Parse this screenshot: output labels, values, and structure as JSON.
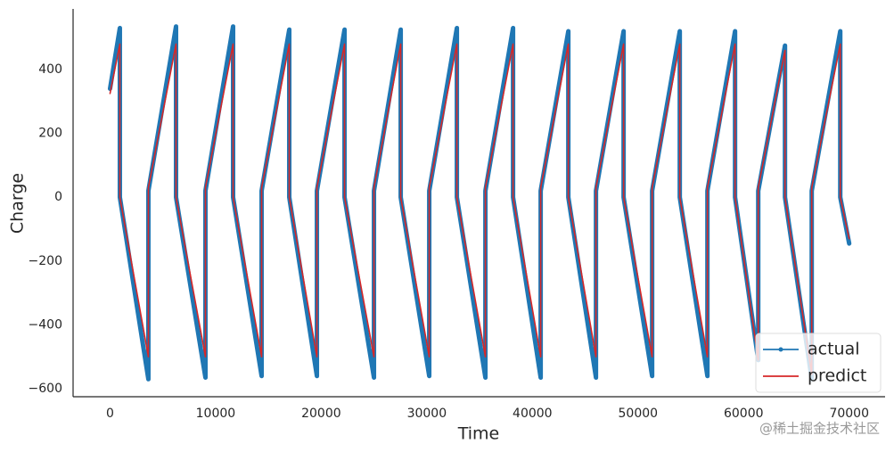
{
  "chart_data": {
    "type": "line",
    "xlabel": "Time",
    "ylabel": "Charge",
    "x": [
      0,
      929,
      929,
      3631,
      3631,
      6249,
      6249,
      9035,
      9035,
      11652,
      11652,
      14354,
      14354,
      16972,
      16972,
      19590,
      19590,
      22207,
      22207,
      24994,
      24994,
      27527,
      27527,
      30229,
      30229,
      32846,
      32846,
      35548,
      35548,
      38166,
      38166,
      40783,
      40783,
      43401,
      43401,
      46019,
      46019,
      48636,
      48636,
      51338,
      51338,
      53956,
      53956,
      56573,
      56573,
      59191,
      59191,
      61387,
      61387,
      63920,
      63920,
      66453,
      66453,
      69155,
      69155,
      70000
    ],
    "series": [
      {
        "name": "actual",
        "color": "#1f77b4",
        "marker": true,
        "values": [
          340,
          530,
          0,
          -570,
          20,
          535,
          0,
          -565,
          20,
          535,
          0,
          -560,
          20,
          525,
          0,
          -560,
          20,
          525,
          0,
          -565,
          20,
          525,
          0,
          -560,
          20,
          530,
          0,
          -565,
          20,
          530,
          0,
          -565,
          20,
          520,
          0,
          -565,
          20,
          520,
          0,
          -560,
          20,
          520,
          0,
          -560,
          20,
          520,
          0,
          -510,
          20,
          475,
          0,
          -570,
          20,
          520,
          0,
          -145
        ]
      },
      {
        "name": "predict",
        "color": "#d62728",
        "marker": false,
        "values": [
          325,
          480,
          0,
          -500,
          30,
          480,
          0,
          -500,
          30,
          480,
          0,
          -500,
          30,
          480,
          0,
          -500,
          30,
          480,
          0,
          -500,
          30,
          480,
          0,
          -500,
          30,
          480,
          0,
          -500,
          30,
          480,
          0,
          -500,
          30,
          480,
          0,
          -500,
          30,
          480,
          0,
          -500,
          30,
          480,
          0,
          -500,
          30,
          480,
          0,
          -510,
          30,
          460,
          0,
          -555,
          30,
          480,
          0,
          -130
        ]
      }
    ],
    "xlim": [
      -3500,
      73400
    ],
    "ylim": [
      -625,
      590
    ],
    "xticks": [
      0,
      10000,
      20000,
      30000,
      40000,
      50000,
      60000,
      70000
    ],
    "yticks": [
      {
        "value": -600,
        "label": "−600"
      },
      {
        "value": -400,
        "label": "−400"
      },
      {
        "value": -200,
        "label": "−200"
      },
      0,
      200,
      400
    ],
    "legend": "lower right",
    "watermark": "@稀土掘金技术社区"
  }
}
